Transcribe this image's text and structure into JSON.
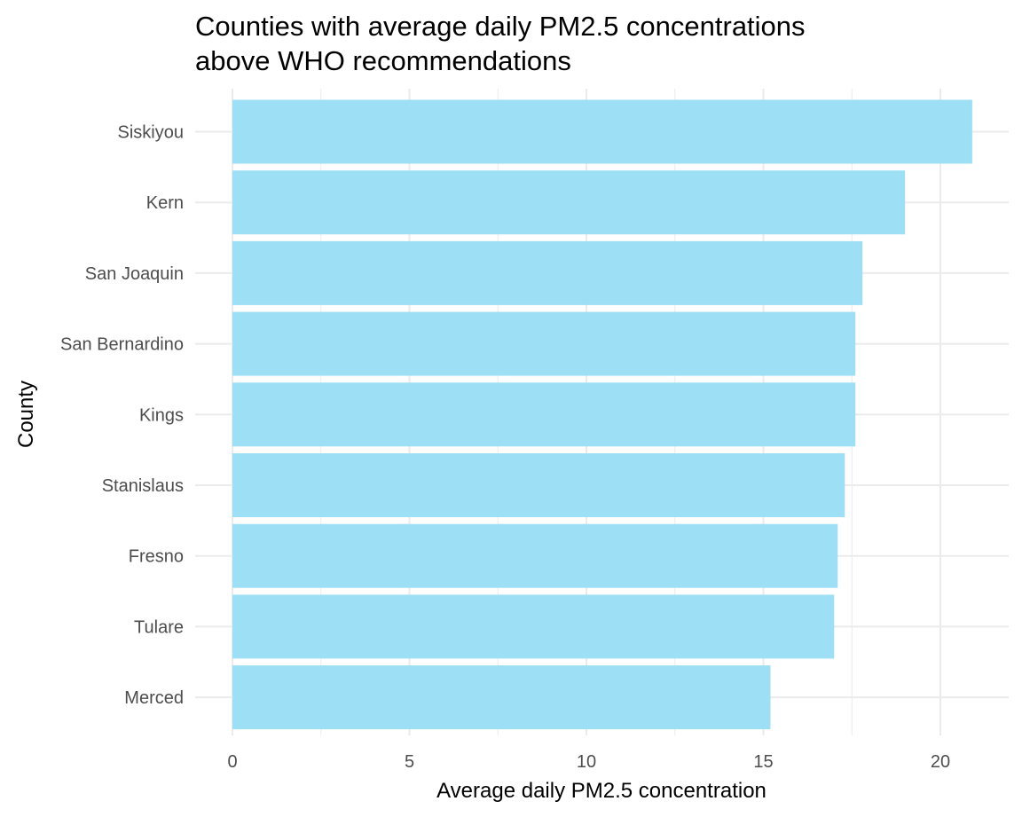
{
  "chart_data": {
    "type": "bar",
    "orientation": "horizontal",
    "title_lines": [
      "Counties with average daily PM2.5 concentrations",
      "above WHO recommendations"
    ],
    "xlabel": "Average daily PM2.5 concentration",
    "ylabel": "County",
    "categories": [
      "Siskiyou",
      "Kern",
      "San Joaquin",
      "San Bernardino",
      "Kings",
      "Stanislaus",
      "Fresno",
      "Tulare",
      "Merced"
    ],
    "values": [
      20.9,
      19.0,
      17.8,
      17.6,
      17.6,
      17.3,
      17.1,
      17.0,
      15.2
    ],
    "x_ticks": [
      0,
      5,
      10,
      15,
      20
    ],
    "xlim": [
      0,
      22
    ],
    "bar_color": "#9DDFF5",
    "grid_color": "#EBEBEB",
    "grid": true,
    "legend": "none"
  }
}
